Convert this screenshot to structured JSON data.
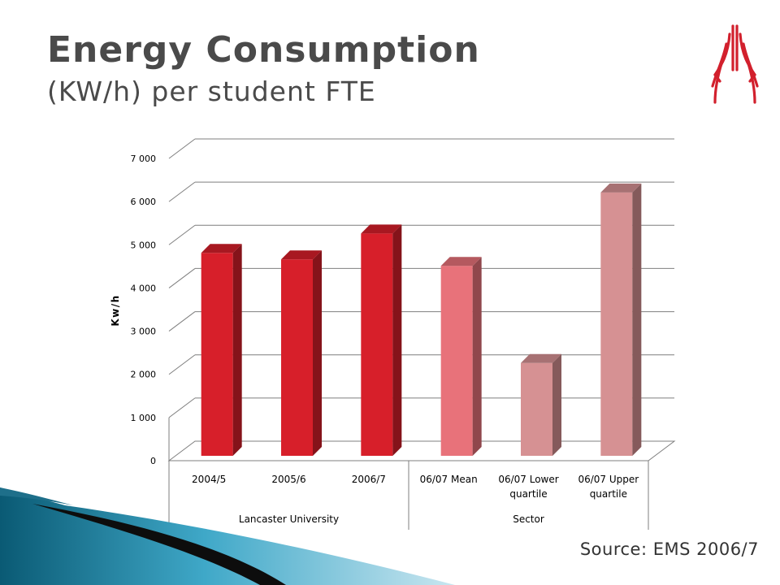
{
  "slide": {
    "title": "Energy Consumption",
    "subtitle": "(KW/h) per student FTE",
    "source": "Source: EMS 2006/7"
  },
  "logo": {
    "icon": "university-crest-icon",
    "color": "#d2202d"
  },
  "chart_data": {
    "type": "bar",
    "title": "",
    "xlabel": "",
    "ylabel": "Kw/h",
    "ylim": [
      0,
      7000
    ],
    "yticks": [
      0,
      1000,
      2000,
      3000,
      4000,
      5000,
      6000,
      7000
    ],
    "ytick_labels": [
      "0",
      "1 000",
      "2 000",
      "3 000",
      "4 000",
      "5 000",
      "6 000",
      "7 000"
    ],
    "grid": true,
    "legend": "none",
    "categories": [
      {
        "label": [
          "2004/5"
        ],
        "group": "Lancaster University",
        "value": 4850,
        "color": "#d71f2a"
      },
      {
        "label": [
          "2005/6"
        ],
        "group": "Lancaster University",
        "value": 4700,
        "color": "#d71f2a"
      },
      {
        "label": [
          "2006/7"
        ],
        "group": "Lancaster University",
        "value": 5300,
        "color": "#d71f2a"
      },
      {
        "label": [
          "06/07 Mean"
        ],
        "group": "Sector",
        "value": 4550,
        "color": "#e8727a"
      },
      {
        "label": [
          "06/07 Lower",
          "quartile"
        ],
        "group": "Sector",
        "value": 2300,
        "color": "#d69193"
      },
      {
        "label": [
          "06/07 Upper",
          "quartile"
        ],
        "group": "Sector",
        "value": 6250,
        "color": "#d69193"
      }
    ],
    "groups": [
      "Lancaster University",
      "Sector"
    ]
  }
}
